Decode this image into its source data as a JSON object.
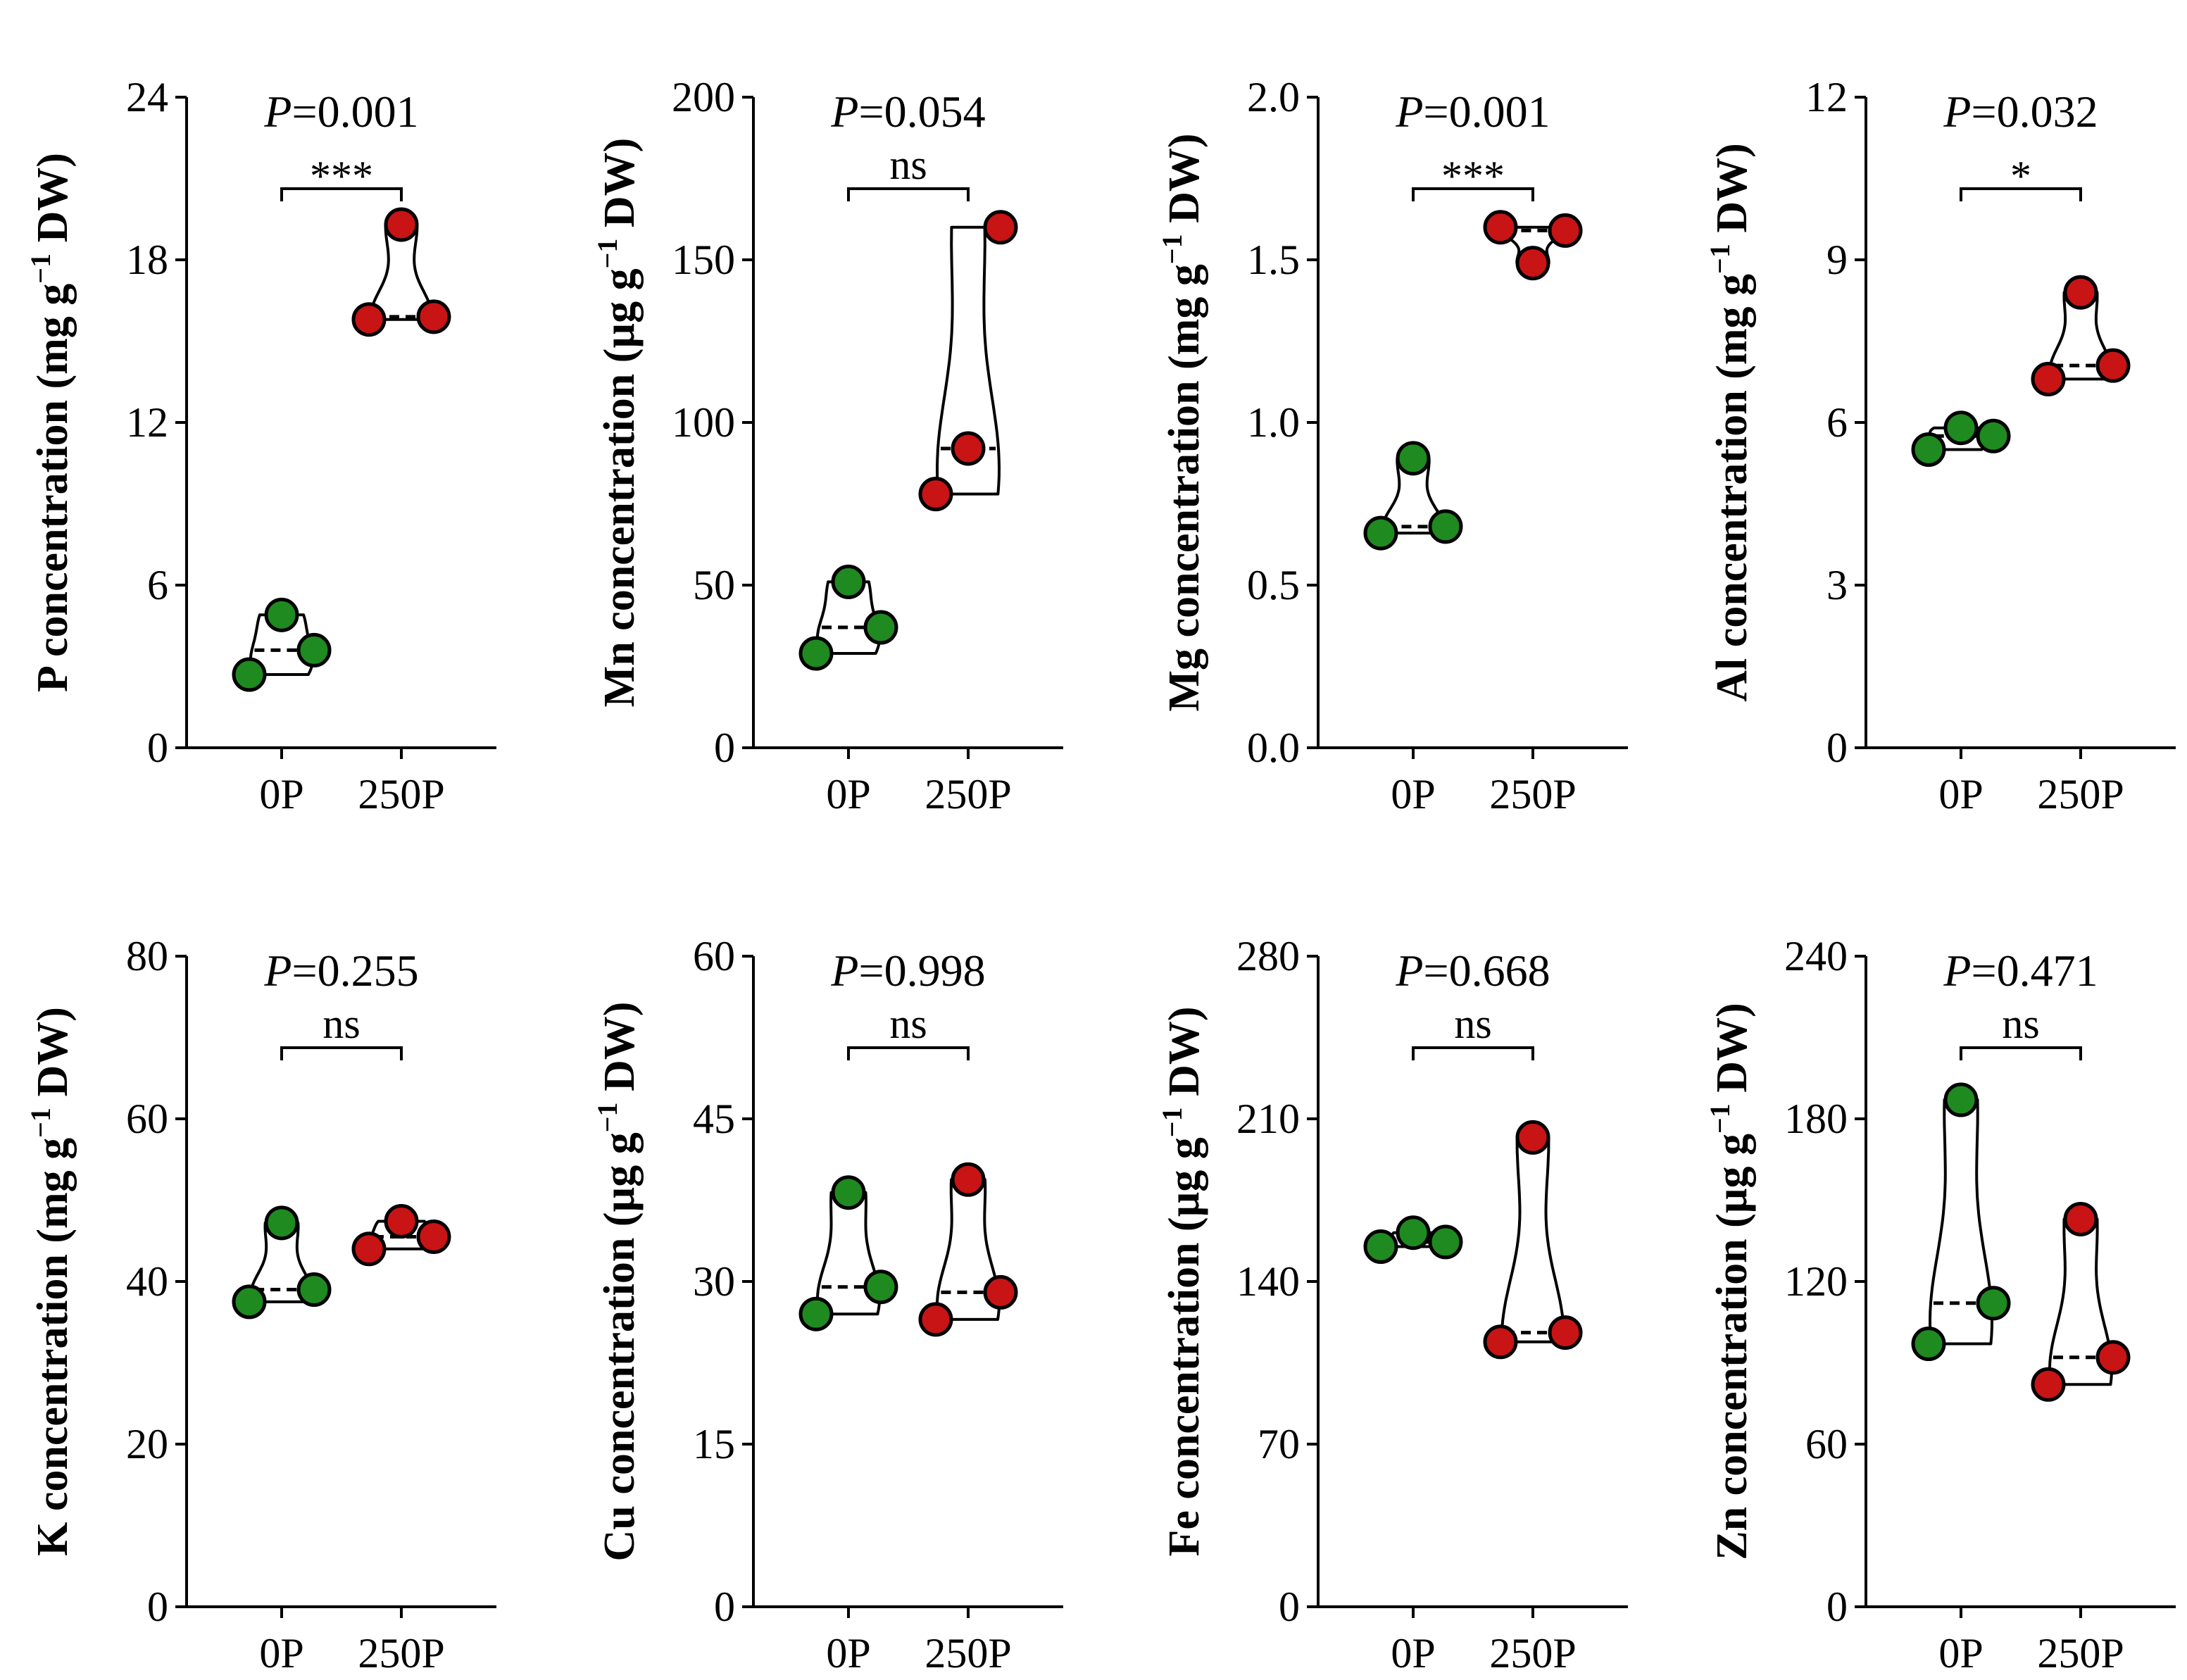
{
  "figure": {
    "colors": {
      "group_0P": "#1f8a1f",
      "group_250P": "#c81414"
    }
  },
  "chart_data": [
    {
      "type": "violin",
      "element": "P",
      "ylabel_pre": "P concentration (mg g",
      "ylabel_sup": "−1",
      "ylabel_post": " DW)",
      "ylim": [
        0,
        24
      ],
      "yticks": [
        "0",
        "6",
        "12",
        "18",
        "24"
      ],
      "categories": [
        "0P",
        "250P"
      ],
      "series": [
        {
          "name": "0P",
          "values": [
            2.7,
            4.9,
            3.6
          ]
        },
        {
          "name": "250P",
          "values": [
            15.8,
            19.3,
            15.9
          ]
        }
      ],
      "p_italic": "P",
      "p_value": "=0.001",
      "significance": "***"
    },
    {
      "type": "violin",
      "element": "Mn",
      "ylabel_pre": "Mn concentration (µg g",
      "ylabel_sup": "−1",
      "ylabel_post": " DW)",
      "ylim": [
        0,
        200
      ],
      "yticks": [
        "0",
        "50",
        "100",
        "150",
        "200"
      ],
      "categories": [
        "0P",
        "250P"
      ],
      "series": [
        {
          "name": "0P",
          "values": [
            29,
            51,
            37
          ]
        },
        {
          "name": "250P",
          "values": [
            78,
            92,
            160
          ]
        }
      ],
      "p_italic": "P",
      "p_value": "=0.054",
      "significance": "ns"
    },
    {
      "type": "violin",
      "element": "Mg",
      "ylabel_pre": "Mg concentration (mg g",
      "ylabel_sup": "−1",
      "ylabel_post": " DW)",
      "ylim": [
        0,
        2
      ],
      "yticks": [
        "0.0",
        "0.5",
        "1.0",
        "1.5",
        "2.0"
      ],
      "categories": [
        "0P",
        "250P"
      ],
      "series": [
        {
          "name": "0P",
          "values": [
            0.66,
            0.89,
            0.68
          ]
        },
        {
          "name": "250P",
          "values": [
            1.6,
            1.49,
            1.59
          ]
        }
      ],
      "p_italic": "P",
      "p_value": "=0.001",
      "significance": "***"
    },
    {
      "type": "violin",
      "element": "Al",
      "ylabel_pre": "Al concentration (mg g",
      "ylabel_sup": "−1",
      "ylabel_post": " DW)",
      "ylim": [
        0,
        12
      ],
      "yticks": [
        "0",
        "3",
        "6",
        "9",
        "12"
      ],
      "categories": [
        "0P",
        "250P"
      ],
      "series": [
        {
          "name": "0P",
          "values": [
            5.5,
            5.9,
            5.75
          ]
        },
        {
          "name": "250P",
          "values": [
            6.8,
            8.4,
            7.05
          ]
        }
      ],
      "p_italic": "P",
      "p_value": "=0.032",
      "significance": "*"
    },
    {
      "type": "violin",
      "element": "K",
      "ylabel_pre": "K concentration (mg g",
      "ylabel_sup": "−1",
      "ylabel_post": " DW)",
      "ylim": [
        0,
        80
      ],
      "yticks": [
        "0",
        "20",
        "40",
        "60",
        "80"
      ],
      "categories": [
        "0P",
        "250P"
      ],
      "series": [
        {
          "name": "0P",
          "values": [
            37.5,
            47.2,
            39.0
          ]
        },
        {
          "name": "250P",
          "values": [
            44.0,
            47.4,
            45.5
          ]
        }
      ],
      "p_italic": "P",
      "p_value": "=0.255",
      "significance": "ns"
    },
    {
      "type": "violin",
      "element": "Cu",
      "ylabel_pre": "Cu concentration (µg g",
      "ylabel_sup": "−1",
      "ylabel_post": " DW)",
      "ylim": [
        0,
        60
      ],
      "yticks": [
        "0",
        "15",
        "30",
        "45",
        "60"
      ],
      "categories": [
        "0P",
        "250P"
      ],
      "series": [
        {
          "name": "0P",
          "values": [
            27.0,
            38.2,
            29.5
          ]
        },
        {
          "name": "250P",
          "values": [
            26.5,
            39.4,
            29.0
          ]
        }
      ],
      "p_italic": "P",
      "p_value": "=0.998",
      "significance": "ns"
    },
    {
      "type": "violin",
      "element": "Fe",
      "ylabel_pre": "Fe concentration (µg g",
      "ylabel_sup": "−1",
      "ylabel_post": " DW)",
      "ylim": [
        0,
        280
      ],
      "yticks": [
        "0",
        "70",
        "140",
        "210",
        "280"
      ],
      "categories": [
        "0P",
        "250P"
      ],
      "series": [
        {
          "name": "0P",
          "values": [
            155,
            161,
            157
          ]
        },
        {
          "name": "250P",
          "values": [
            114,
            202,
            118
          ]
        }
      ],
      "p_italic": "P",
      "p_value": "=0.668",
      "significance": "ns"
    },
    {
      "type": "violin",
      "element": "Zn",
      "ylabel_pre": "Zn concentration (µg g",
      "ylabel_sup": "−1",
      "ylabel_post": " DW)",
      "ylim": [
        0,
        240
      ],
      "yticks": [
        "0",
        "60",
        "120",
        "180",
        "240"
      ],
      "categories": [
        "0P",
        "250P"
      ],
      "series": [
        {
          "name": "0P",
          "values": [
            97,
            187,
            112
          ]
        },
        {
          "name": "250P",
          "values": [
            82,
            143,
            92
          ]
        }
      ],
      "p_italic": "P",
      "p_value": "=0.471",
      "significance": "ns"
    }
  ]
}
